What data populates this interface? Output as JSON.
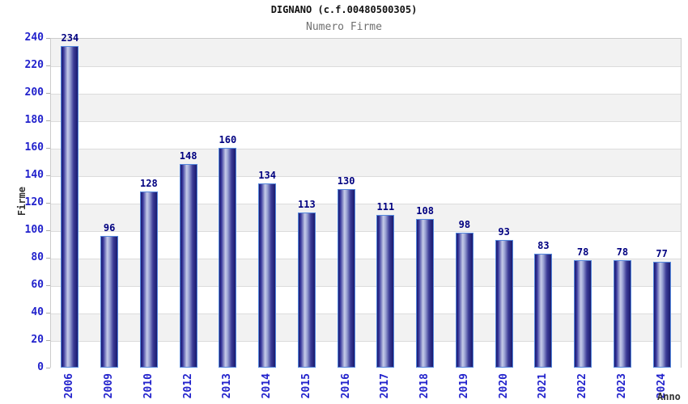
{
  "header": {
    "title": "DIGNANO (c.f.00480500305)",
    "subtitle": "Numero Firme"
  },
  "chart_data": {
    "type": "bar",
    "title": "DIGNANO (c.f.00480500305)",
    "subtitle": "Numero Firme",
    "categories": [
      "2006",
      "2009",
      "2010",
      "2012",
      "2013",
      "2014",
      "2015",
      "2016",
      "2017",
      "2018",
      "2019",
      "2020",
      "2021",
      "2022",
      "2023",
      "2024"
    ],
    "values": [
      234,
      96,
      128,
      148,
      160,
      134,
      113,
      130,
      111,
      108,
      98,
      93,
      83,
      78,
      78,
      77
    ],
    "xlabel": "Anno",
    "ylabel": "Firme",
    "ylim": [
      0,
      240
    ],
    "ytick_step": 20,
    "grid": true,
    "legend": "none",
    "colors": {
      "axis_tick_label": "#2222cc",
      "value_label": "#000080",
      "bar_border": "#5588dd",
      "bar_edge_dark": "#1a1a6e",
      "bar_mid": "#34349a",
      "bar_highlight": "#c6cce8",
      "band_gray": "#f2f2f2",
      "band_white": "#ffffff",
      "gridline": "#dcdcdc",
      "plot_border": "#cccccc",
      "title_color": "#111111",
      "subtitle_color": "#707070",
      "axis_title_color": "#333333"
    }
  }
}
